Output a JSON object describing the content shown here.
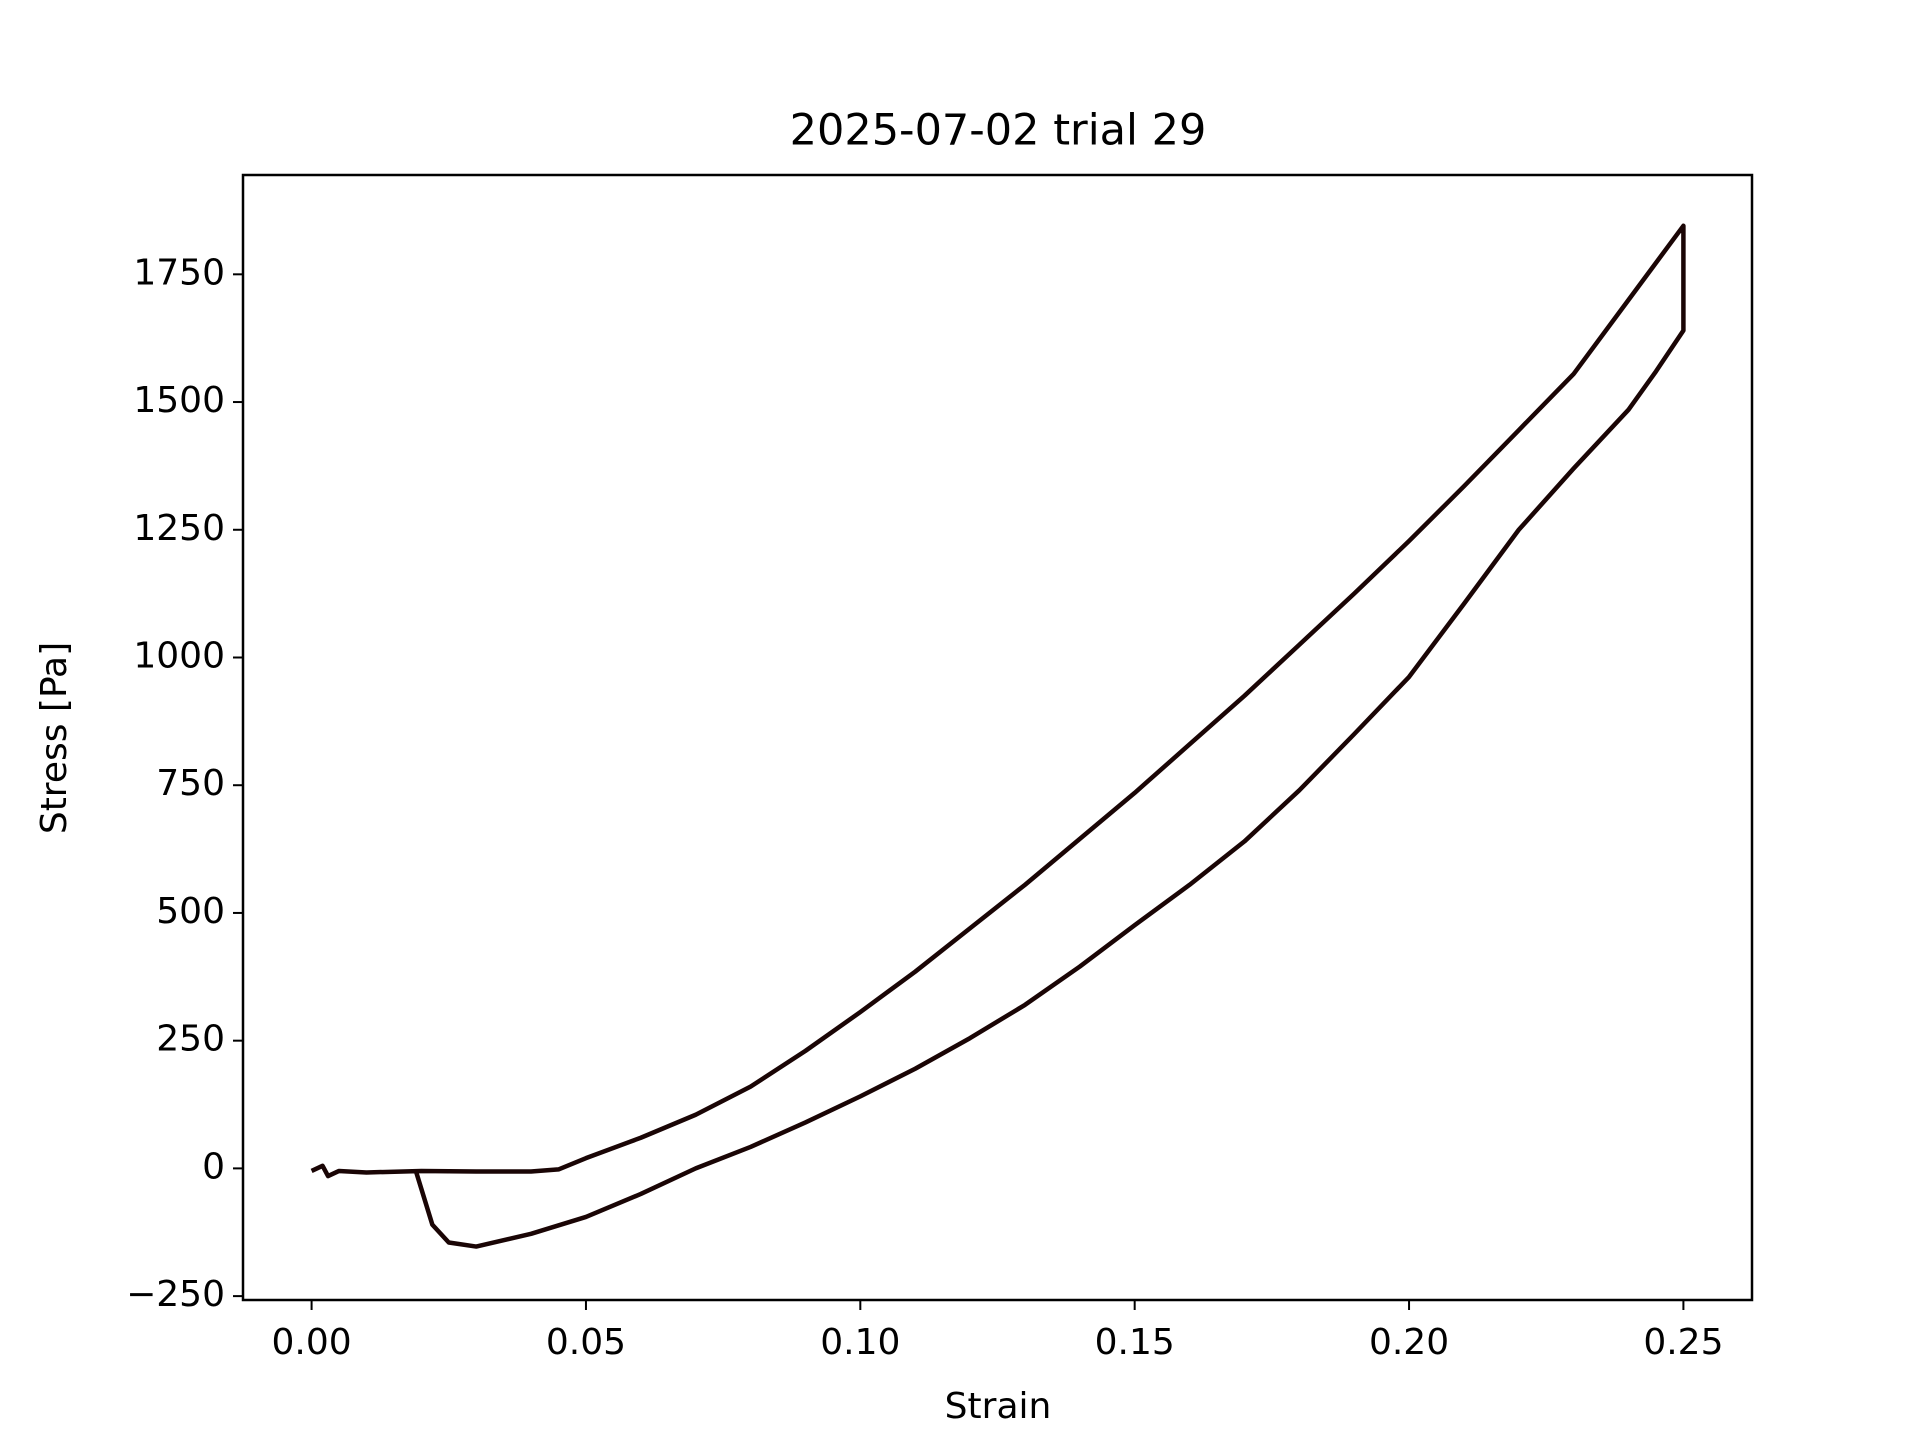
{
  "chart_data": {
    "type": "line",
    "title": "2025-07-02 trial 29",
    "x_label": "Strain",
    "y_label": "Stress [Pa]",
    "series": [
      {
        "color": "#1a0505",
        "x": [
          0,
          0.002,
          0.003,
          0.005,
          0.01,
          0.02,
          0.03,
          0.04,
          0.045,
          0.05,
          0.06,
          0.07,
          0.08,
          0.09,
          0.1,
          0.11,
          0.12,
          0.13,
          0.14,
          0.15,
          0.16,
          0.17,
          0.18,
          0.19,
          0.2,
          0.21,
          0.22,
          0.23,
          0.24,
          0.25,
          0.25,
          0.245,
          0.24,
          0.23,
          0.22,
          0.21,
          0.2,
          0.19,
          0.18,
          0.17,
          0.16,
          0.15,
          0.14,
          0.13,
          0.12,
          0.11,
          0.1,
          0.09,
          0.08,
          0.07,
          0.06,
          0.05,
          0.04,
          0.03,
          0.025,
          0.022,
          0.02,
          0.019
        ],
        "values": [
          -5,
          5,
          -15,
          -5,
          -8,
          -5,
          -6,
          -6,
          -2,
          20,
          60,
          105,
          160,
          230,
          306,
          385,
          470,
          555,
          645,
          735,
          830,
          925,
          1025,
          1125,
          1228,
          1335,
          1445,
          1555,
          1700,
          1845,
          1640,
          1560,
          1485,
          1370,
          1250,
          1105,
          962,
          850,
          740,
          640,
          555,
          476,
          395,
          320,
          255,
          195,
          141,
          90,
          42,
          0,
          -50,
          -95,
          -128,
          -153,
          -145,
          -110,
          -40,
          -5
        ]
      }
    ],
    "xlim": [
      -0.0125,
      0.2625
    ],
    "xticks": [
      {
        "value": 0,
        "label": "0.00"
      },
      0.05,
      {
        "value": 0.1,
        "label": "0.10"
      },
      0.15,
      {
        "value": 0.2,
        "label": "0.20"
      },
      0.25
    ],
    "ylim": [
      -257.6,
      1944.4
    ],
    "yticks": [
      {
        "value": -250,
        "label": "−250"
      },
      0,
      250,
      500,
      750,
      1000,
      1250,
      1500,
      1750
    ]
  }
}
